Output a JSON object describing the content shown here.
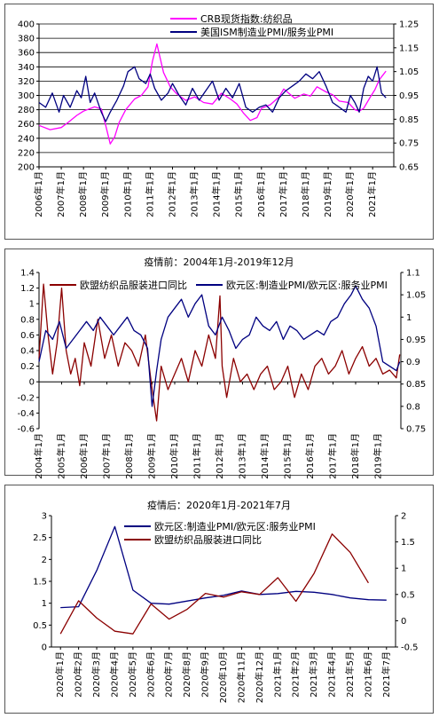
{
  "charts": [
    {
      "id": "p1",
      "type": "line",
      "title": "",
      "x_tick_labels": [
        "2006年1月",
        "2007年1月",
        "2008年1月",
        "2009年1月",
        "2010年1月",
        "2011年1月",
        "2012年1月",
        "2013年1月",
        "2014年1月",
        "2015年1月",
        "2016年1月",
        "2017年1月",
        "2018年1月",
        "2019年1月",
        "2020年1月",
        "2021年1月"
      ],
      "y_left": {
        "min": 200,
        "max": 400,
        "step": 20,
        "ticks": [
          "200",
          "220",
          "240",
          "260",
          "280",
          "300",
          "320",
          "340",
          "360",
          "380",
          "400"
        ]
      },
      "y_right": {
        "min": 0.65,
        "max": 1.25,
        "ticks": [
          "0.65",
          "0.75",
          "0.85",
          "0.95",
          "1.05",
          "1.15",
          "1.25"
        ]
      },
      "grid": "horizontal",
      "legend_position": "top-center",
      "series": [
        {
          "name": "CRB现货指数:纺织品",
          "axis": "left",
          "color": "#ff00ff",
          "x": [
            2006.0,
            2006.5,
            2007.0,
            2007.3,
            2007.7,
            2008.0,
            2008.5,
            2008.8,
            2009.0,
            2009.2,
            2009.4,
            2009.6,
            2009.9,
            2010.3,
            2010.6,
            2010.9,
            2011.1,
            2011.3,
            2011.6,
            2011.9,
            2012.2,
            2012.6,
            2013.0,
            2013.4,
            2013.8,
            2014.2,
            2014.6,
            2014.9,
            2015.2,
            2015.5,
            2015.8,
            2016.0,
            2016.4,
            2016.8,
            2017.0,
            2017.5,
            2017.9,
            2018.2,
            2018.5,
            2018.9,
            2019.2,
            2019.5,
            2019.9,
            2020.2,
            2020.4,
            2020.6,
            2020.9,
            2021.1,
            2021.3,
            2021.6
          ],
          "y": [
            258,
            252,
            255,
            262,
            272,
            278,
            284,
            281,
            258,
            232,
            242,
            262,
            280,
            295,
            300,
            312,
            348,
            372,
            332,
            312,
            302,
            293,
            298,
            290,
            288,
            303,
            295,
            288,
            275,
            265,
            269,
            282,
            287,
            298,
            309,
            296,
            302,
            299,
            312,
            305,
            301,
            292,
            290,
            280,
            278,
            282,
            298,
            308,
            322,
            334
          ]
        },
        {
          "name": "美国ISM制造业PMI/服务业PMI",
          "axis": "right",
          "color": "#000080",
          "x": [
            2006.0,
            2006.3,
            2006.6,
            2006.9,
            2007.1,
            2007.4,
            2007.7,
            2007.9,
            2008.1,
            2008.3,
            2008.5,
            2008.8,
            2009.0,
            2009.2,
            2009.5,
            2009.8,
            2010.0,
            2010.3,
            2010.5,
            2010.8,
            2011.0,
            2011.2,
            2011.5,
            2011.8,
            2012.0,
            2012.3,
            2012.6,
            2012.9,
            2013.2,
            2013.5,
            2013.8,
            2014.1,
            2014.4,
            2014.7,
            2015.0,
            2015.3,
            2015.6,
            2015.9,
            2016.2,
            2016.5,
            2016.8,
            2017.1,
            2017.4,
            2017.7,
            2018.0,
            2018.3,
            2018.6,
            2018.9,
            2019.2,
            2019.5,
            2019.8,
            2020.0,
            2020.2,
            2020.4,
            2020.6,
            2020.8,
            2021.0,
            2021.2,
            2021.4,
            2021.6
          ],
          "y": [
            0.92,
            0.9,
            0.96,
            0.88,
            0.95,
            0.9,
            0.97,
            0.94,
            1.03,
            0.92,
            0.96,
            0.88,
            0.84,
            0.88,
            0.93,
            0.99,
            1.05,
            1.07,
            1.02,
            1.0,
            1.04,
            0.98,
            0.93,
            0.96,
            1.0,
            0.95,
            0.91,
            0.98,
            0.93,
            0.97,
            1.01,
            0.93,
            0.98,
            0.94,
            1.0,
            0.9,
            0.88,
            0.9,
            0.91,
            0.88,
            0.94,
            0.97,
            0.99,
            1.01,
            1.04,
            1.02,
            1.05,
            0.99,
            0.92,
            0.9,
            0.88,
            0.95,
            0.92,
            0.88,
            0.98,
            1.03,
            1.01,
            1.07,
            0.96,
            0.94
          ]
        }
      ]
    },
    {
      "id": "p2",
      "type": "line",
      "title": "疫情前：2004年1月-2019年12月",
      "x_tick_labels": [
        "2004年1月",
        "2005年1月",
        "2006年1月",
        "2007年1月",
        "2008年1月",
        "2009年1月",
        "2010年1月",
        "2011年1月",
        "2012年1月",
        "2013年1月",
        "2014年1月",
        "2015年1月",
        "2016年1月",
        "2017年1月",
        "2018年1月",
        "2019年1月"
      ],
      "y_left": {
        "min": -0.6,
        "max": 1.4,
        "ticks": [
          "-0.6",
          "-0.4",
          "-0.2",
          "0",
          "0.2",
          "0.4",
          "0.6",
          "0.8",
          "1",
          "1.2",
          "1.4"
        ]
      },
      "y_right": {
        "min": 0.75,
        "max": 1.1,
        "ticks": [
          "0.75",
          "0.8",
          "0.85",
          "0.9",
          "0.95",
          "1",
          "1.05",
          "1.1"
        ]
      },
      "grid": "none",
      "legend_position": "top-center",
      "series": [
        {
          "name": "欧盟纺织品服装进口同比",
          "axis": "left",
          "color": "#8b0000",
          "x": [
            2004.0,
            2004.2,
            2004.4,
            2004.6,
            2004.8,
            2005.0,
            2005.2,
            2005.4,
            2005.6,
            2005.8,
            2006.0,
            2006.3,
            2006.6,
            2006.9,
            2007.2,
            2007.5,
            2007.8,
            2008.1,
            2008.4,
            2008.7,
            2009.0,
            2009.2,
            2009.4,
            2009.7,
            2010.0,
            2010.3,
            2010.6,
            2010.9,
            2011.2,
            2011.5,
            2011.8,
            2012.0,
            2012.1,
            2012.3,
            2012.6,
            2012.9,
            2013.2,
            2013.5,
            2013.8,
            2014.1,
            2014.4,
            2014.7,
            2015.0,
            2015.3,
            2015.6,
            2015.9,
            2016.2,
            2016.5,
            2016.8,
            2017.1,
            2017.4,
            2017.7,
            2018.0,
            2018.3,
            2018.6,
            2018.9,
            2019.2,
            2019.5,
            2019.8,
            2019.95
          ],
          "y": [
            0.3,
            1.25,
            0.6,
            0.1,
            0.5,
            1.2,
            0.4,
            0.1,
            0.3,
            -0.05,
            0.5,
            0.2,
            0.8,
            0.3,
            0.6,
            0.2,
            0.5,
            0.4,
            0.2,
            0.6,
            -0.1,
            -0.5,
            0.2,
            -0.1,
            0.1,
            0.3,
            0.0,
            0.4,
            0.2,
            0.6,
            0.3,
            1.1,
            0.2,
            -0.2,
            0.3,
            0.0,
            0.1,
            -0.1,
            0.1,
            0.2,
            -0.1,
            0.0,
            0.2,
            -0.2,
            0.1,
            -0.1,
            0.2,
            0.3,
            0.1,
            0.2,
            0.4,
            0.1,
            0.3,
            0.45,
            0.2,
            0.3,
            0.1,
            0.15,
            0.05,
            0.35
          ]
        },
        {
          "name": "欧元区:制造业PMI/欧元区:服务业PMI",
          "axis": "right",
          "color": "#000080",
          "x": [
            2004.0,
            2004.3,
            2004.6,
            2004.9,
            2005.2,
            2005.5,
            2005.8,
            2006.1,
            2006.4,
            2006.7,
            2007.0,
            2007.3,
            2007.6,
            2007.9,
            2008.2,
            2008.5,
            2008.8,
            2009.0,
            2009.2,
            2009.4,
            2009.7,
            2010.0,
            2010.3,
            2010.6,
            2010.9,
            2011.2,
            2011.5,
            2011.8,
            2012.1,
            2012.4,
            2012.7,
            2013.0,
            2013.3,
            2013.6,
            2013.9,
            2014.2,
            2014.5,
            2014.8,
            2015.1,
            2015.4,
            2015.7,
            2016.0,
            2016.3,
            2016.6,
            2016.9,
            2017.2,
            2017.5,
            2017.8,
            2018.0,
            2018.3,
            2018.6,
            2018.9,
            2019.2,
            2019.5,
            2019.8,
            2019.95
          ],
          "y": [
            0.9,
            0.97,
            0.95,
            0.99,
            0.93,
            0.95,
            0.97,
            0.99,
            0.97,
            1.0,
            0.98,
            0.96,
            0.98,
            1.0,
            0.97,
            0.96,
            0.93,
            0.8,
            0.88,
            0.95,
            1.0,
            1.02,
            1.04,
            1.0,
            1.03,
            1.05,
            0.98,
            0.96,
            1.0,
            0.97,
            0.93,
            0.95,
            0.96,
            1.0,
            0.98,
            0.97,
            0.99,
            0.95,
            0.98,
            0.97,
            0.95,
            0.96,
            0.97,
            0.96,
            0.99,
            1.0,
            1.03,
            1.05,
            1.07,
            1.04,
            1.02,
            0.98,
            0.9,
            0.89,
            0.88,
            0.9
          ]
        }
      ]
    },
    {
      "id": "p3",
      "type": "line",
      "title": "疫情后：2020年1月-2021年7月",
      "x_tick_labels": [
        "2020年1月",
        "2020年2月",
        "2020年3月",
        "2020年4月",
        "2020年5月",
        "2020年6月",
        "2020年7月",
        "2020年8月",
        "2020年9月",
        "2020年10月",
        "2020年11月",
        "2020年12月",
        "2021年1月",
        "2021年2月",
        "2021年3月",
        "2021年4月",
        "2021年5月",
        "2021年6月",
        "2021年7月"
      ],
      "y_left": {
        "min": 0,
        "max": 3,
        "ticks": [
          "0",
          "0.5",
          "1",
          "1.5",
          "2",
          "2.5",
          "3"
        ]
      },
      "y_right": {
        "min": -0.5,
        "max": 2,
        "ticks": [
          "-0.5",
          "0",
          "0.5",
          "1",
          "1.5",
          "2"
        ]
      },
      "grid": "none",
      "legend_position": "top-center",
      "series": [
        {
          "name": "欧元区:制造业PMI/欧元区:服务业PMI",
          "axis": "left",
          "color": "#000080",
          "x": [
            0,
            1,
            2,
            3,
            4,
            5,
            6,
            7,
            8,
            9,
            10,
            11,
            12,
            13,
            14,
            15,
            16,
            17,
            18
          ],
          "y": [
            0.9,
            0.92,
            1.75,
            2.75,
            1.3,
            1.0,
            0.98,
            1.05,
            1.12,
            1.18,
            1.28,
            1.2,
            1.22,
            1.27,
            1.25,
            1.2,
            1.12,
            1.08,
            1.07
          ]
        },
        {
          "name": "欧盟纺织品服装进口同比",
          "axis": "right",
          "color": "#8b0000",
          "x": [
            0,
            1,
            2,
            3,
            4,
            5,
            6,
            7,
            8,
            9,
            10,
            11,
            12,
            13,
            14,
            15,
            16,
            17
          ],
          "y": [
            -0.25,
            0.38,
            0.05,
            -0.2,
            -0.25,
            0.32,
            0.03,
            0.22,
            0.52,
            0.45,
            0.55,
            0.5,
            0.82,
            0.37,
            0.9,
            1.65,
            1.3,
            0.72
          ]
        }
      ]
    }
  ]
}
